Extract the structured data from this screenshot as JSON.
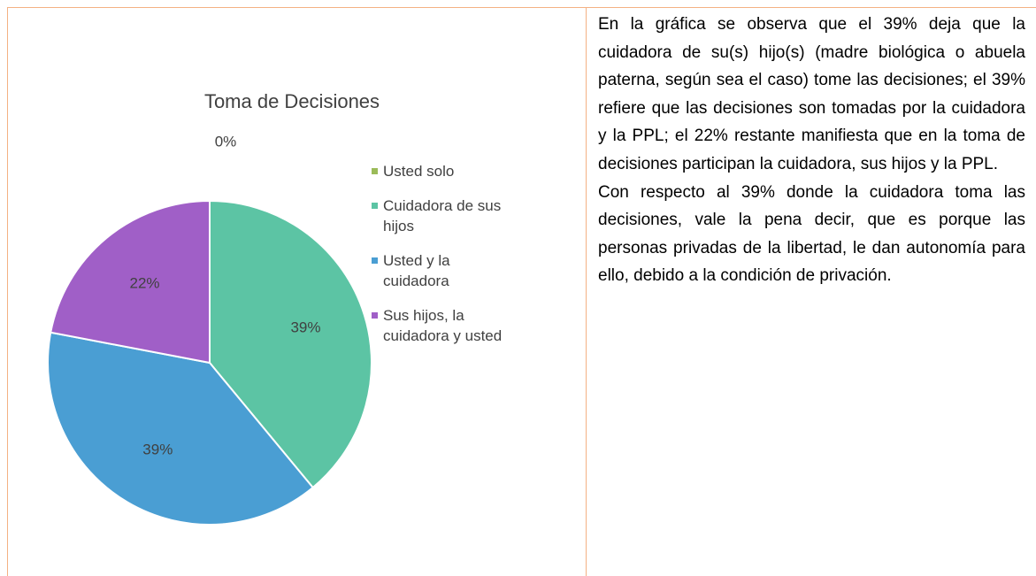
{
  "chart_data": {
    "type": "pie",
    "title": "Toma de Decisiones",
    "categories": [
      "Usted solo",
      "Cuidadora de sus hijos",
      "Usted y la cuidadora",
      "Sus hijos, la cuidadora y usted"
    ],
    "values": [
      0,
      39,
      39,
      22
    ],
    "value_labels": [
      "0%",
      "39%",
      "39%",
      "22%"
    ],
    "colors": [
      "#9bbb59",
      "#5cc4a4",
      "#4a9ed3",
      "#a05fc7"
    ],
    "legend": "right"
  },
  "text": {
    "paragraphs": [
      "En la gráfica se observa que el 39% deja que la cuidadora de su(s) hijo(s) (madre biológica o abuela paterna, según sea el caso) tome las decisiones; el 39% refiere que las decisiones son tomadas por la cuidadora y la PPL; el 22% restante manifiesta que en la toma de decisiones participan la cuidadora, sus hijos y la PPL.",
      "Con respecto al 39% donde la cuidadora toma las decisiones, vale la pena decir, que es porque las personas privadas de la libertad, le dan autonomía para ello, debido a la condición de privación."
    ]
  }
}
